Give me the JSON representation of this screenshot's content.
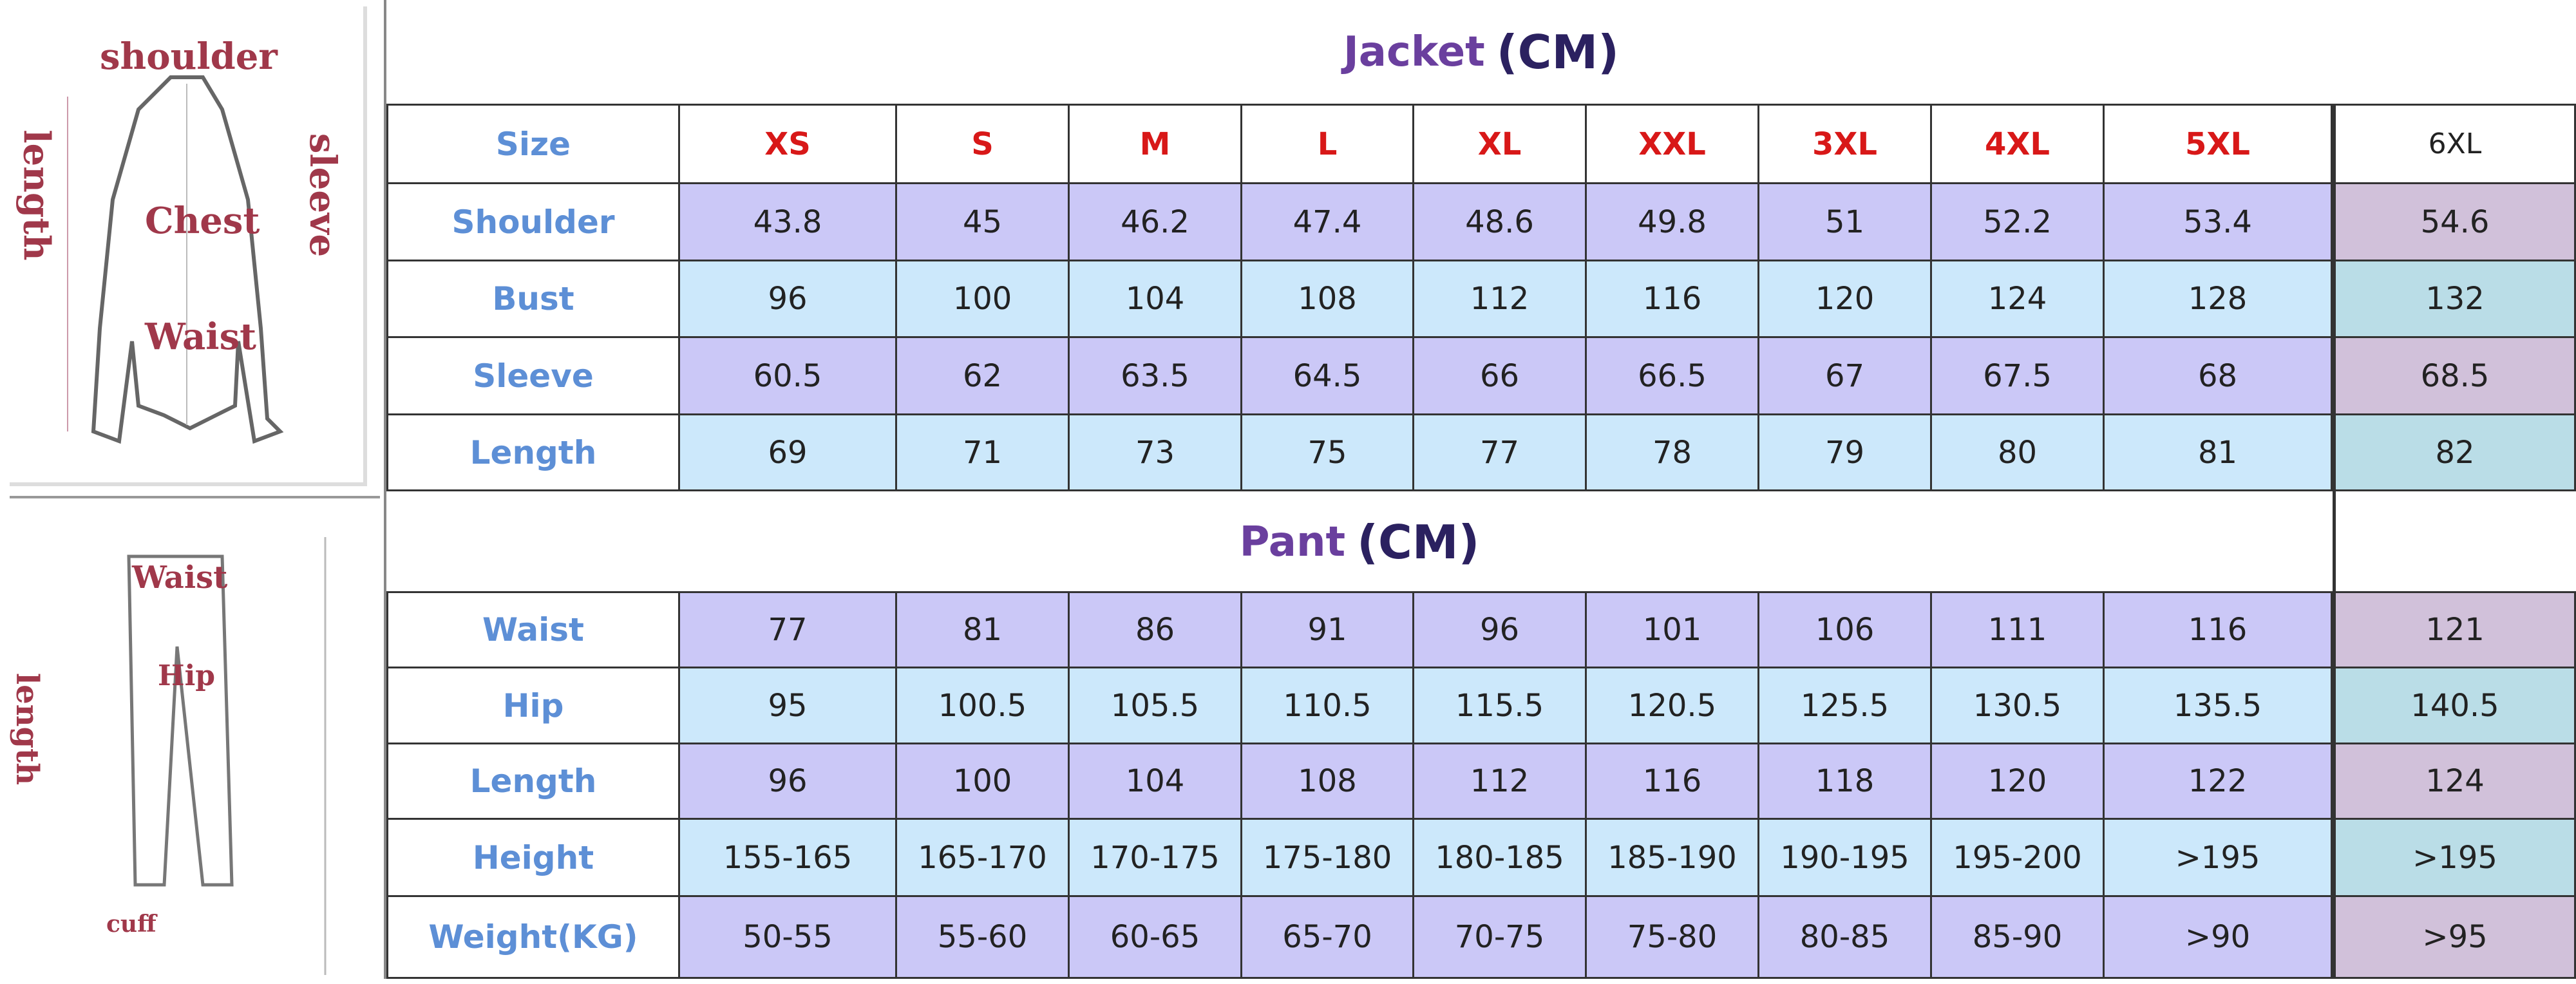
{
  "left_panel": {
    "jacket_labels": {
      "shoulder": "shoulder",
      "length": "length",
      "sleeve": "sleeve",
      "chest": "Chest",
      "waist": "Waist"
    },
    "pant_labels": {
      "waist": "Waist",
      "length": "length",
      "hip": "Hip",
      "cuff": "cuff"
    }
  },
  "jacket": {
    "title": "Jacket",
    "unit": "(CM)",
    "header_label": "Size",
    "sizes": [
      "XS",
      "S",
      "M",
      "L",
      "XL",
      "XXL",
      "3XL",
      "4XL",
      "5XL",
      "6XL"
    ],
    "rows": [
      {
        "label": "Shoulder",
        "values": [
          "43.8",
          "45",
          "46.2",
          "47.4",
          "48.6",
          "49.8",
          "51",
          "52.2",
          "53.4",
          "54.6"
        ]
      },
      {
        "label": "Bust",
        "values": [
          "96",
          "100",
          "104",
          "108",
          "112",
          "116",
          "120",
          "124",
          "128",
          "132"
        ]
      },
      {
        "label": "Sleeve",
        "values": [
          "60.5",
          "62",
          "63.5",
          "64.5",
          "66",
          "66.5",
          "67",
          "67.5",
          "68",
          "68.5"
        ]
      },
      {
        "label": "Length",
        "values": [
          "69",
          "71",
          "73",
          "75",
          "77",
          "78",
          "79",
          "80",
          "81",
          "82"
        ]
      }
    ]
  },
  "pant": {
    "title": "Pant",
    "unit": "(CM)",
    "rows": [
      {
        "label": "Waist",
        "values": [
          "77",
          "81",
          "86",
          "91",
          "96",
          "101",
          "106",
          "111",
          "116",
          "121"
        ]
      },
      {
        "label": "Hip",
        "values": [
          "95",
          "100.5",
          "105.5",
          "110.5",
          "115.5",
          "120.5",
          "125.5",
          "130.5",
          "135.5",
          "140.5"
        ]
      },
      {
        "label": "Length",
        "values": [
          "96",
          "100",
          "104",
          "108",
          "112",
          "116",
          "118",
          "120",
          "122",
          "124"
        ]
      },
      {
        "label": "Height",
        "values": [
          "155-165",
          "165-170",
          "170-175",
          "175-180",
          "180-185",
          "185-190",
          "190-195",
          "195-200",
          ">195",
          ">195"
        ]
      },
      {
        "label": "Weight(KG)",
        "values": [
          "50-55",
          "55-60",
          "60-65",
          "65-70",
          "70-75",
          "75-80",
          "80-85",
          "85-90",
          ">90",
          ">95"
        ]
      }
    ]
  },
  "colors": {
    "purple": "#cbc8f7",
    "blue": "#cce8fb",
    "purple_6xl": "#d1c1da",
    "blue_6xl": "#badde7",
    "size_red": "#d81818",
    "label_blue": "#5d8fd6",
    "title_purple": "#6a3f9e"
  }
}
